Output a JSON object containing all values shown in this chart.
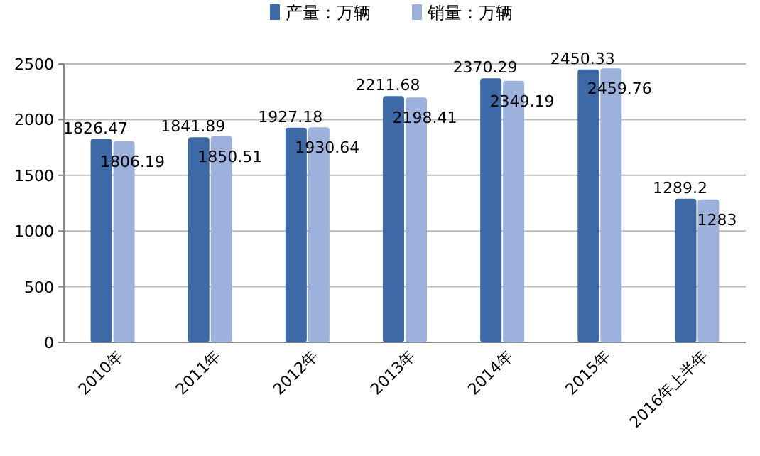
{
  "chart_data": {
    "type": "bar",
    "categories": [
      "2010年",
      "2011年",
      "2012年",
      "2013年",
      "2014年",
      "2015年",
      "2016年上半年"
    ],
    "series": [
      {
        "name": "产量：万辆",
        "color": "#3d6aa6",
        "values": [
          1826.47,
          1841.89,
          1927.18,
          2211.68,
          2370.29,
          2450.33,
          1289.2
        ]
      },
      {
        "name": "销量：万辆",
        "color": "#9cb2dc",
        "values": [
          1806.19,
          1850.51,
          1930.64,
          2198.41,
          2349.19,
          2459.76,
          1283
        ]
      }
    ],
    "ylim": [
      0,
      2500
    ],
    "yticks": [
      0,
      500,
      1000,
      1500,
      2000,
      2500
    ],
    "grid": "y",
    "legend": "top",
    "data_labels": true
  }
}
